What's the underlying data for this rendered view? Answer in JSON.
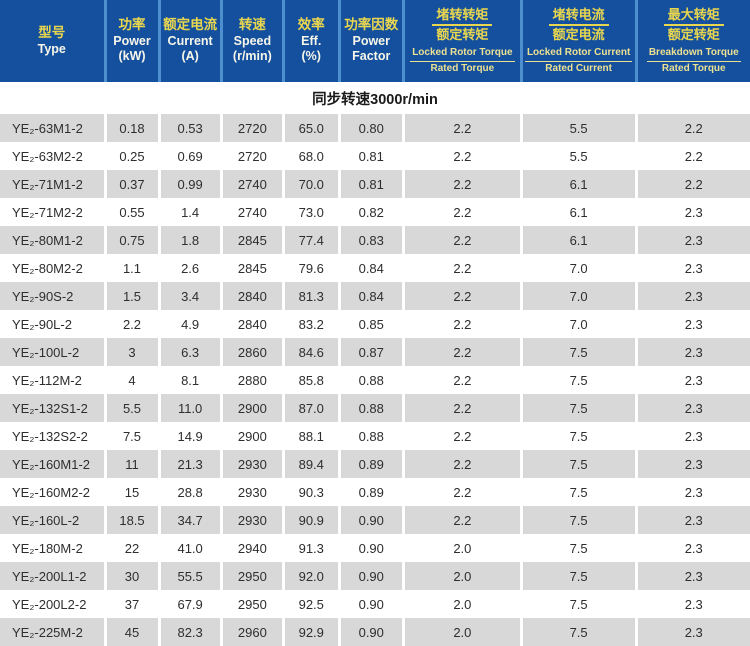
{
  "table": {
    "section_title": "同步转速3000r/min",
    "columns": [
      {
        "cn": "型号",
        "en": "Type"
      },
      {
        "cn": "功率",
        "en": "Power",
        "unit": "(kW)"
      },
      {
        "cn": "额定电流",
        "en": "Current",
        "unit": "(A)"
      },
      {
        "cn": "转速",
        "en": "Speed",
        "unit": "(r/min)"
      },
      {
        "cn": "效率",
        "en": "Eff.",
        "unit": "(%)"
      },
      {
        "cn": "功率因数",
        "en": "Power",
        "unit": "Factor"
      },
      {
        "cn_top": "堵转转矩",
        "cn_bottom": "额定转矩",
        "en_top": "Locked Rotor Torque",
        "en_bottom": "Rated Torque"
      },
      {
        "cn_top": "堵转电流",
        "cn_bottom": "额定电流",
        "en_top": "Locked Rotor Current",
        "en_bottom": "Rated Current"
      },
      {
        "cn_top": "最大转矩",
        "cn_bottom": "额定转矩",
        "en_top": "Breakdown Torque",
        "en_bottom": "Rated Torque"
      }
    ],
    "rows": [
      [
        "YE₂-63M1-2",
        "0.18",
        "0.53",
        "2720",
        "65.0",
        "0.80",
        "2.2",
        "5.5",
        "2.2"
      ],
      [
        "YE₂-63M2-2",
        "0.25",
        "0.69",
        "2720",
        "68.0",
        "0.81",
        "2.2",
        "5.5",
        "2.2"
      ],
      [
        "YE₂-71M1-2",
        "0.37",
        "0.99",
        "2740",
        "70.0",
        "0.81",
        "2.2",
        "6.1",
        "2.2"
      ],
      [
        "YE₂-71M2-2",
        "0.55",
        "1.4",
        "2740",
        "73.0",
        "0.82",
        "2.2",
        "6.1",
        "2.3"
      ],
      [
        "YE₂-80M1-2",
        "0.75",
        "1.8",
        "2845",
        "77.4",
        "0.83",
        "2.2",
        "6.1",
        "2.3"
      ],
      [
        "YE₂-80M2-2",
        "1.1",
        "2.6",
        "2845",
        "79.6",
        "0.84",
        "2.2",
        "7.0",
        "2.3"
      ],
      [
        "YE₂-90S-2",
        "1.5",
        "3.4",
        "2840",
        "81.3",
        "0.84",
        "2.2",
        "7.0",
        "2.3"
      ],
      [
        "YE₂-90L-2",
        "2.2",
        "4.9",
        "2840",
        "83.2",
        "0.85",
        "2.2",
        "7.0",
        "2.3"
      ],
      [
        "YE₂-100L-2",
        "3",
        "6.3",
        "2860",
        "84.6",
        "0.87",
        "2.2",
        "7.5",
        "2.3"
      ],
      [
        "YE₂-112M-2",
        "4",
        "8.1",
        "2880",
        "85.8",
        "0.88",
        "2.2",
        "7.5",
        "2.3"
      ],
      [
        "YE₂-132S1-2",
        "5.5",
        "11.0",
        "2900",
        "87.0",
        "0.88",
        "2.2",
        "7.5",
        "2.3"
      ],
      [
        "YE₂-132S2-2",
        "7.5",
        "14.9",
        "2900",
        "88.1",
        "0.88",
        "2.2",
        "7.5",
        "2.3"
      ],
      [
        "YE₂-160M1-2",
        "11",
        "21.3",
        "2930",
        "89.4",
        "0.89",
        "2.2",
        "7.5",
        "2.3"
      ],
      [
        "YE₂-160M2-2",
        "15",
        "28.8",
        "2930",
        "90.3",
        "0.89",
        "2.2",
        "7.5",
        "2.3"
      ],
      [
        "YE₂-160L-2",
        "18.5",
        "34.7",
        "2930",
        "90.9",
        "0.90",
        "2.2",
        "7.5",
        "2.3"
      ],
      [
        "YE₂-180M-2",
        "22",
        "41.0",
        "2940",
        "91.3",
        "0.90",
        "2.0",
        "7.5",
        "2.3"
      ],
      [
        "YE₂-200L1-2",
        "30",
        "55.5",
        "2950",
        "92.0",
        "0.90",
        "2.0",
        "7.5",
        "2.3"
      ],
      [
        "YE₂-200L2-2",
        "37",
        "67.9",
        "2950",
        "92.5",
        "0.90",
        "2.0",
        "7.5",
        "2.3"
      ],
      [
        "YE₂-225M-2",
        "45",
        "82.3",
        "2960",
        "92.9",
        "0.90",
        "2.0",
        "7.5",
        "2.3"
      ]
    ],
    "colors": {
      "header_bg": "#14509e",
      "header_separator": "#4e8fd0",
      "header_cn_text": "#e9d64f",
      "header_en_text": "#f7f6ea",
      "row_stripe": "#d8d8d8",
      "row_text": "#2e2e2e"
    }
  }
}
